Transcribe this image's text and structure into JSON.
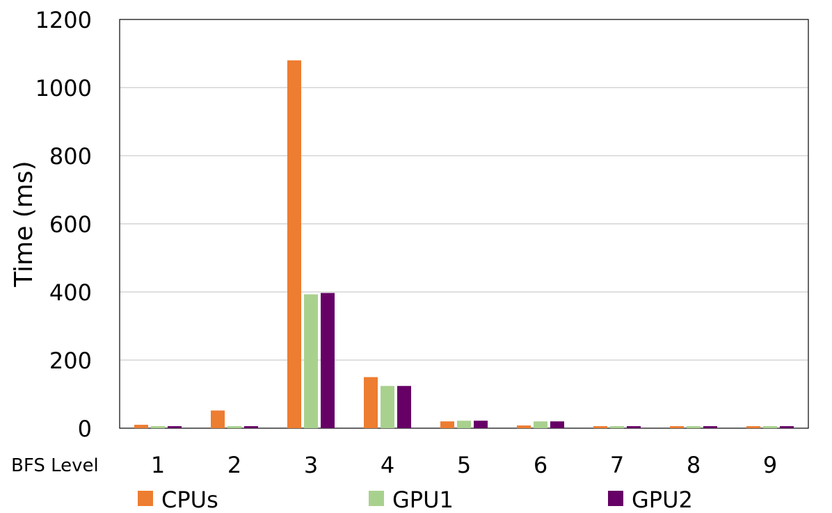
{
  "chart_data": {
    "type": "bar",
    "ylabel": "Time (ms)",
    "xlabel": "BFS Level",
    "ylim": [
      0,
      1200
    ],
    "yticks": [
      0,
      200,
      400,
      600,
      800,
      1000,
      1200
    ],
    "grid": true,
    "legend_position": "bottom",
    "categories": [
      "1",
      "2",
      "3",
      "4",
      "5",
      "6",
      "7",
      "8",
      "9"
    ],
    "series": [
      {
        "name": "CPUs",
        "color": "#ED7D31",
        "values": [
          10,
          52,
          1080,
          150,
          20,
          8,
          6,
          6,
          6
        ]
      },
      {
        "name": "GPU1",
        "color": "#A9D18E",
        "values": [
          6,
          6,
          393,
          124,
          22,
          20,
          6,
          6,
          6
        ]
      },
      {
        "name": "GPU2",
        "color": "#660066",
        "values": [
          6,
          6,
          397,
          124,
          22,
          20,
          6,
          6,
          6
        ]
      }
    ]
  }
}
